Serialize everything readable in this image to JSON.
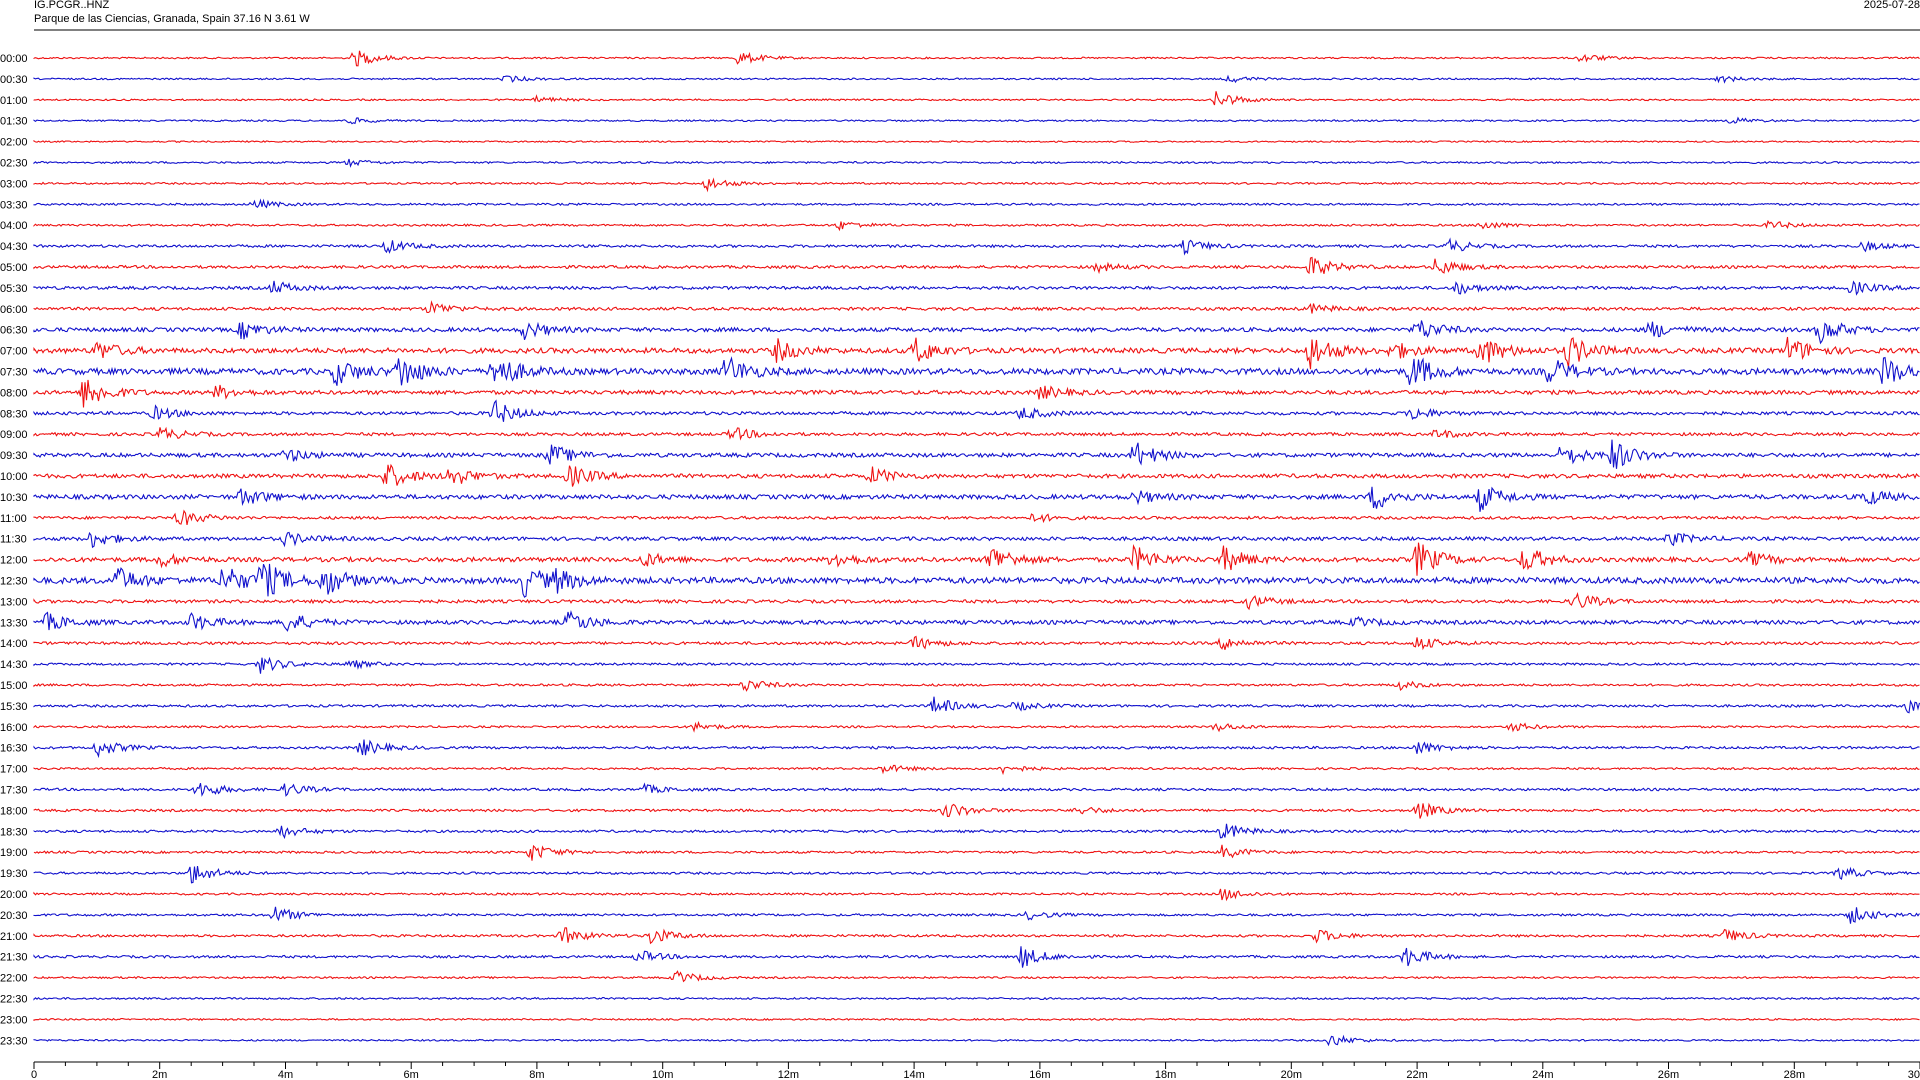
{
  "header": {
    "station_code": "IG.PCGR..HNZ",
    "station_desc": "Parque de las Ciencias, Granada, Spain  37.16 N 3.61 W",
    "date": "2025-07-28"
  },
  "chart_data": {
    "type": "line",
    "title": "IG.PCGR..HNZ",
    "subtitle": "Parque de las Ciencias, Granada, Spain  37.16 N 3.61 W",
    "xlabel": "",
    "ylabel": "",
    "x_unit": "m",
    "xlim": [
      0,
      30
    ],
    "x_ticks": [
      "0",
      "2m",
      "4m",
      "6m",
      "8m",
      "10m",
      "12m",
      "14m",
      "16m",
      "18m",
      "20m",
      "22m",
      "24m",
      "26m",
      "28m",
      "30"
    ],
    "grid": false,
    "colors": [
      "#ee1111",
      "#1111cc"
    ],
    "rows": [
      {
        "label": "00:00",
        "noise": 0.8,
        "events": [
          [
            5.1,
            4
          ],
          [
            11.2,
            3
          ],
          [
            24.6,
            2
          ]
        ]
      },
      {
        "label": "00:30",
        "noise": 0.8,
        "events": [
          [
            7.5,
            1.5
          ],
          [
            19.0,
            1.5
          ],
          [
            26.8,
            1.5
          ]
        ]
      },
      {
        "label": "01:00",
        "noise": 0.8,
        "events": [
          [
            18.8,
            4
          ],
          [
            8.0,
            1.5
          ]
        ]
      },
      {
        "label": "01:30",
        "noise": 0.8,
        "events": [
          [
            5.0,
            1.5
          ],
          [
            27.0,
            1.5
          ]
        ]
      },
      {
        "label": "02:00",
        "noise": 0.7,
        "events": []
      },
      {
        "label": "02:30",
        "noise": 0.9,
        "events": [
          [
            5.0,
            1.5
          ]
        ]
      },
      {
        "label": "03:00",
        "noise": 0.9,
        "events": [
          [
            10.7,
            3
          ]
        ]
      },
      {
        "label": "03:30",
        "noise": 1.0,
        "events": [
          [
            3.5,
            2
          ]
        ]
      },
      {
        "label": "04:00",
        "noise": 1.0,
        "events": [
          [
            12.8,
            2
          ],
          [
            23.0,
            2
          ],
          [
            27.6,
            2
          ]
        ]
      },
      {
        "label": "04:30",
        "noise": 1.3,
        "events": [
          [
            5.6,
            3
          ],
          [
            18.3,
            3
          ],
          [
            22.5,
            3
          ],
          [
            29.1,
            2
          ]
        ]
      },
      {
        "label": "05:00",
        "noise": 1.4,
        "events": [
          [
            20.3,
            5
          ],
          [
            22.3,
            4
          ],
          [
            16.9,
            2
          ]
        ]
      },
      {
        "label": "05:30",
        "noise": 1.5,
        "events": [
          [
            3.8,
            3
          ],
          [
            22.6,
            3
          ],
          [
            28.9,
            3
          ]
        ]
      },
      {
        "label": "06:00",
        "noise": 1.5,
        "events": [
          [
            6.3,
            3
          ],
          [
            20.3,
            2
          ]
        ]
      },
      {
        "label": "06:30",
        "noise": 2.0,
        "events": [
          [
            3.3,
            4
          ],
          [
            7.8,
            4
          ],
          [
            22.0,
            5
          ],
          [
            25.7,
            4
          ],
          [
            28.4,
            6
          ]
        ]
      },
      {
        "label": "07:00",
        "noise": 2.5,
        "events": [
          [
            1.0,
            4
          ],
          [
            11.8,
            5
          ],
          [
            14.0,
            6
          ],
          [
            20.3,
            8
          ],
          [
            21.6,
            4
          ],
          [
            23.0,
            7
          ],
          [
            24.4,
            7
          ],
          [
            27.9,
            6
          ]
        ]
      },
      {
        "label": "07:30",
        "noise": 3.0,
        "events": [
          [
            4.8,
            6
          ],
          [
            5.8,
            8
          ],
          [
            7.3,
            9
          ],
          [
            11.0,
            7
          ],
          [
            21.9,
            8
          ],
          [
            24.1,
            6
          ],
          [
            29.4,
            7
          ]
        ]
      },
      {
        "label": "08:00",
        "noise": 2.0,
        "events": [
          [
            0.8,
            8
          ],
          [
            2.9,
            3
          ],
          [
            16.0,
            3
          ]
        ]
      },
      {
        "label": "08:30",
        "noise": 1.6,
        "events": [
          [
            1.9,
            3
          ],
          [
            7.3,
            6
          ],
          [
            15.7,
            3
          ],
          [
            21.9,
            3
          ]
        ]
      },
      {
        "label": "09:00",
        "noise": 1.5,
        "events": [
          [
            2.0,
            3
          ],
          [
            11.1,
            3
          ],
          [
            22.3,
            2
          ]
        ]
      },
      {
        "label": "09:30",
        "noise": 2.0,
        "events": [
          [
            4.0,
            3
          ],
          [
            8.2,
            5
          ],
          [
            17.5,
            6
          ],
          [
            24.3,
            5
          ],
          [
            25.1,
            7
          ]
        ]
      },
      {
        "label": "10:00",
        "noise": 2.0,
        "events": [
          [
            5.6,
            6
          ],
          [
            6.6,
            5
          ],
          [
            8.5,
            5
          ],
          [
            13.3,
            4
          ]
        ]
      },
      {
        "label": "10:30",
        "noise": 2.2,
        "events": [
          [
            3.3,
            4
          ],
          [
            17.5,
            3
          ],
          [
            21.3,
            6
          ],
          [
            23.0,
            6
          ],
          [
            29.1,
            4
          ]
        ]
      },
      {
        "label": "11:00",
        "noise": 1.4,
        "events": [
          [
            2.3,
            4
          ],
          [
            15.9,
            2
          ]
        ]
      },
      {
        "label": "11:30",
        "noise": 1.8,
        "events": [
          [
            0.9,
            4
          ],
          [
            4.0,
            3
          ],
          [
            26.0,
            3
          ]
        ]
      },
      {
        "label": "12:00",
        "noise": 2.2,
        "events": [
          [
            2.0,
            3
          ],
          [
            9.7,
            3
          ],
          [
            12.7,
            4
          ],
          [
            15.2,
            7
          ],
          [
            17.5,
            6
          ],
          [
            18.9,
            6
          ],
          [
            22.0,
            8
          ],
          [
            23.7,
            6
          ],
          [
            27.3,
            3
          ]
        ]
      },
      {
        "label": "12:30",
        "noise": 3.0,
        "events": [
          [
            1.3,
            6
          ],
          [
            3.0,
            7
          ],
          [
            3.6,
            9
          ],
          [
            4.6,
            7
          ],
          [
            7.8,
            7
          ],
          [
            8.3,
            4
          ]
        ]
      },
      {
        "label": "13:00",
        "noise": 1.6,
        "events": [
          [
            19.3,
            3
          ],
          [
            24.5,
            4
          ]
        ]
      },
      {
        "label": "13:30",
        "noise": 2.0,
        "events": [
          [
            0.2,
            4
          ],
          [
            2.5,
            4
          ],
          [
            4.0,
            5
          ],
          [
            8.5,
            5
          ],
          [
            21.0,
            2
          ]
        ]
      },
      {
        "label": "14:00",
        "noise": 1.4,
        "events": [
          [
            14.0,
            3
          ],
          [
            18.9,
            3
          ],
          [
            22.0,
            3
          ]
        ]
      },
      {
        "label": "14:30",
        "noise": 1.1,
        "events": [
          [
            3.6,
            4
          ],
          [
            5.0,
            2
          ]
        ]
      },
      {
        "label": "15:00",
        "noise": 1.1,
        "events": [
          [
            11.3,
            3
          ],
          [
            21.7,
            2
          ]
        ]
      },
      {
        "label": "15:30",
        "noise": 1.2,
        "events": [
          [
            14.3,
            4
          ],
          [
            15.6,
            2
          ],
          [
            29.8,
            3
          ]
        ]
      },
      {
        "label": "16:00",
        "noise": 1.0,
        "events": [
          [
            10.5,
            2
          ],
          [
            18.8,
            2
          ],
          [
            23.5,
            2
          ]
        ]
      },
      {
        "label": "16:30",
        "noise": 1.2,
        "events": [
          [
            1.0,
            4
          ],
          [
            5.2,
            4
          ],
          [
            22.0,
            3
          ]
        ]
      },
      {
        "label": "17:00",
        "noise": 1.0,
        "events": [
          [
            13.5,
            2
          ],
          [
            15.4,
            2
          ]
        ]
      },
      {
        "label": "17:30",
        "noise": 1.2,
        "events": [
          [
            2.6,
            4
          ],
          [
            4.0,
            3
          ],
          [
            9.7,
            2
          ]
        ]
      },
      {
        "label": "18:00",
        "noise": 1.2,
        "events": [
          [
            14.5,
            4
          ],
          [
            16.6,
            2
          ],
          [
            22.0,
            4
          ]
        ]
      },
      {
        "label": "18:30",
        "noise": 1.2,
        "events": [
          [
            3.9,
            3
          ],
          [
            18.9,
            4
          ]
        ]
      },
      {
        "label": "19:00",
        "noise": 1.1,
        "events": [
          [
            7.9,
            4
          ],
          [
            18.9,
            3
          ]
        ]
      },
      {
        "label": "19:30",
        "noise": 1.1,
        "events": [
          [
            2.5,
            5
          ],
          [
            28.7,
            3
          ]
        ]
      },
      {
        "label": "20:00",
        "noise": 1.0,
        "events": [
          [
            18.9,
            3
          ]
        ]
      },
      {
        "label": "20:30",
        "noise": 1.1,
        "events": [
          [
            3.8,
            4
          ],
          [
            15.8,
            2
          ],
          [
            28.9,
            4
          ]
        ]
      },
      {
        "label": "21:00",
        "noise": 1.2,
        "events": [
          [
            8.4,
            4
          ],
          [
            9.8,
            4
          ],
          [
            20.4,
            3
          ],
          [
            26.9,
            3
          ]
        ]
      },
      {
        "label": "21:30",
        "noise": 1.2,
        "events": [
          [
            9.6,
            3
          ],
          [
            15.7,
            5
          ],
          [
            21.8,
            5
          ]
        ]
      },
      {
        "label": "22:00",
        "noise": 0.9,
        "events": [
          [
            10.2,
            3
          ]
        ]
      },
      {
        "label": "22:30",
        "noise": 0.9,
        "events": []
      },
      {
        "label": "23:00",
        "noise": 0.8,
        "events": []
      },
      {
        "label": "23:30",
        "noise": 0.8,
        "events": [
          [
            20.6,
            3
          ]
        ]
      }
    ]
  }
}
